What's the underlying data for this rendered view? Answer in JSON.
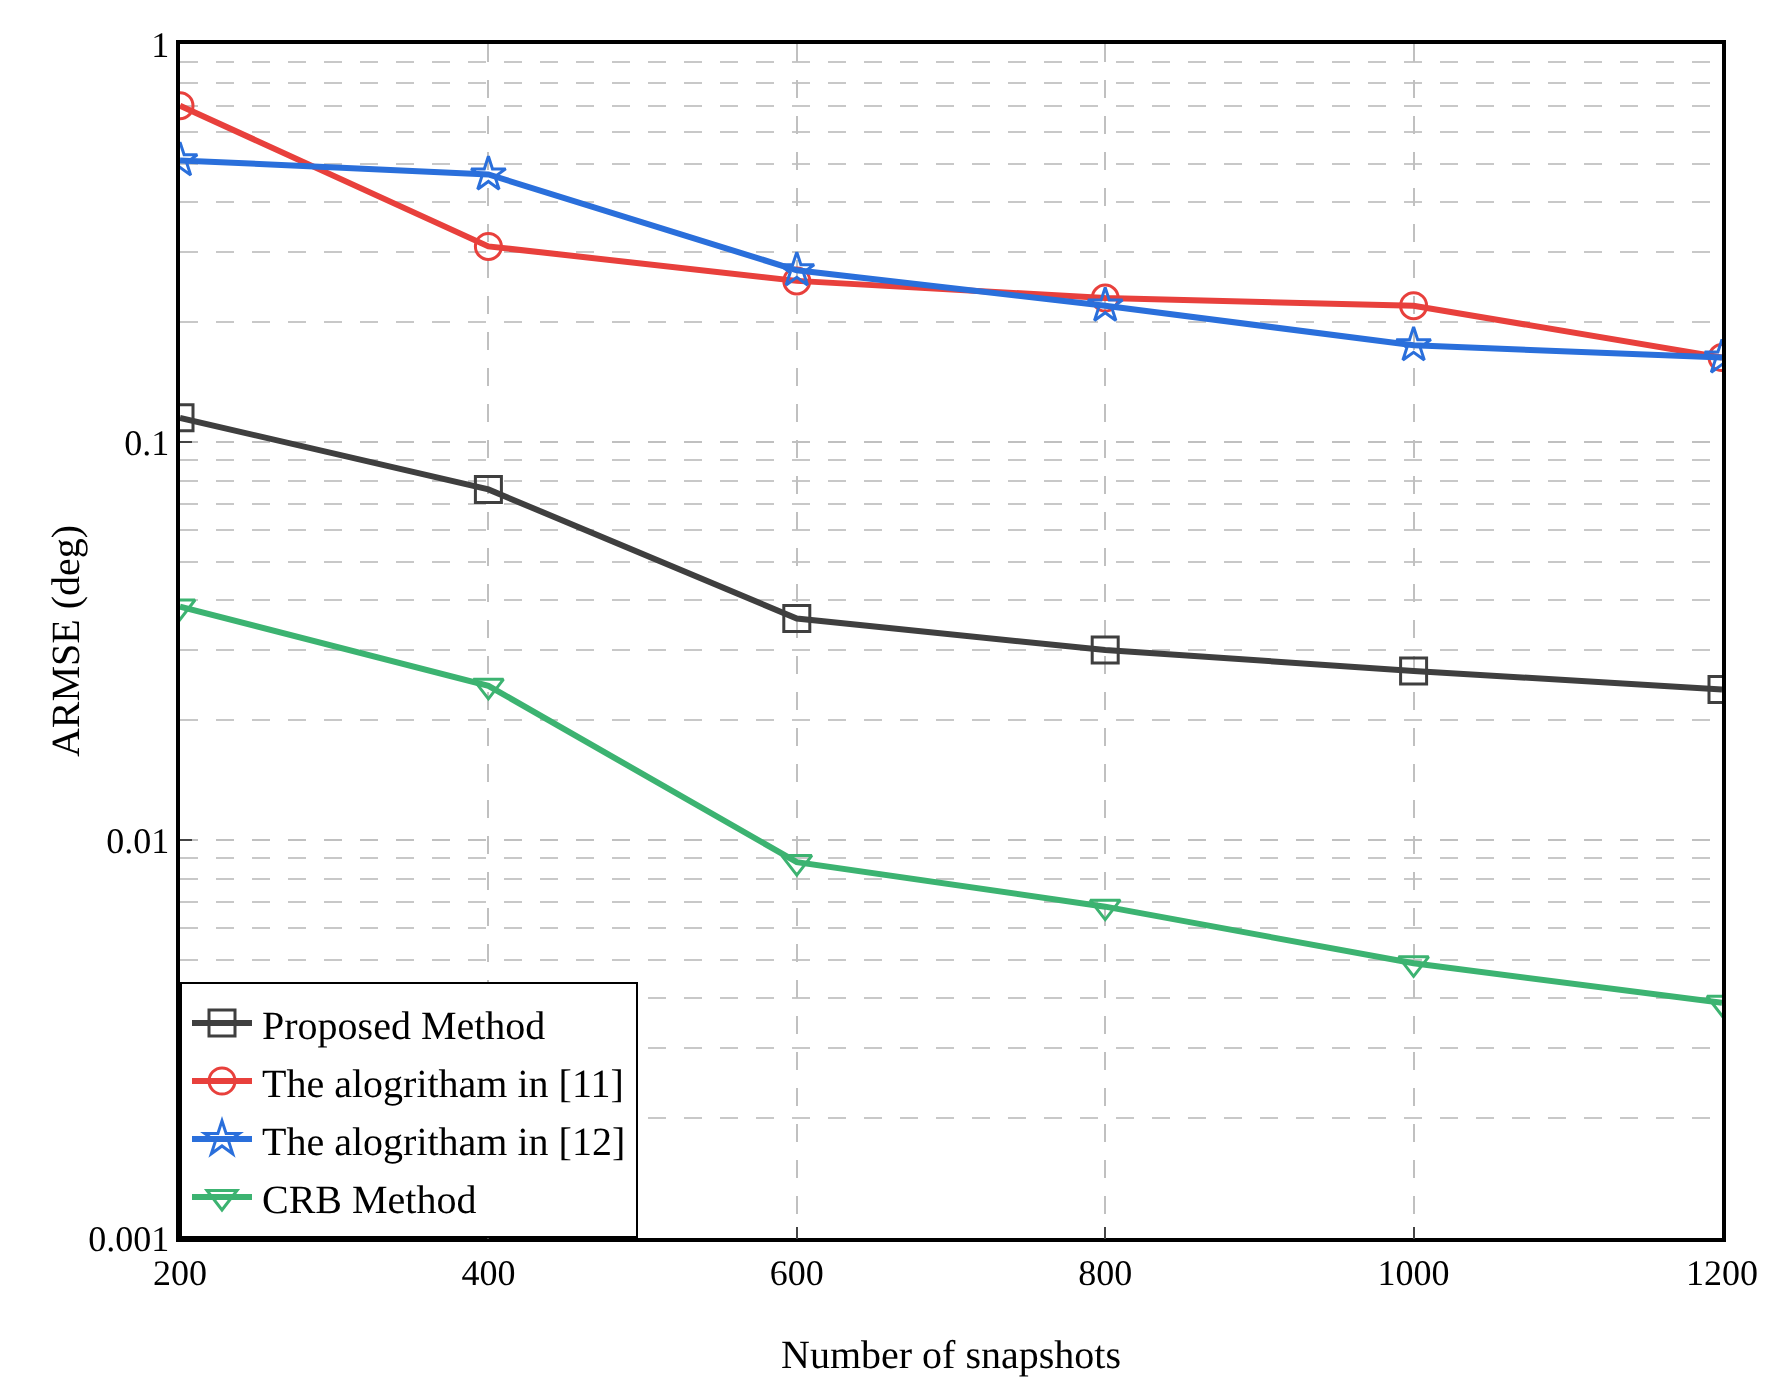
{
  "chart_data": {
    "type": "line",
    "xlabel": "Number of snapshots",
    "ylabel": "ARMSE (deg)",
    "x": [
      200,
      400,
      600,
      800,
      1000,
      1200
    ],
    "series": [
      {
        "name": "Proposed Method",
        "color": "#3f3f3f",
        "marker": "square",
        "values": [
          0.115,
          0.076,
          0.036,
          0.03,
          0.0266,
          0.0239
        ]
      },
      {
        "name": "The alogritham in [11]",
        "color": "#e8403c",
        "marker": "circle",
        "values": [
          0.7,
          0.31,
          0.254,
          0.23,
          0.22,
          0.163
        ]
      },
      {
        "name": "The alogritham in [12]",
        "color": "#2a6fdb",
        "marker": "star",
        "values": [
          0.51,
          0.47,
          0.27,
          0.22,
          0.175,
          0.163
        ]
      },
      {
        "name": "CRB Method",
        "color": "#3cb371",
        "marker": "triangle",
        "values": [
          0.0386,
          0.0244,
          0.0088,
          0.0068,
          0.0049,
          0.0039
        ]
      }
    ],
    "xlim": [
      200,
      1200
    ],
    "xticks": [
      200,
      400,
      600,
      800,
      1000,
      1200
    ],
    "ylim": [
      0.001,
      1
    ],
    "yticks": [
      0.001,
      0.01,
      0.1,
      1
    ],
    "log": "y",
    "grid": true,
    "legend": "bottom left",
    "line_style": "solid"
  }
}
